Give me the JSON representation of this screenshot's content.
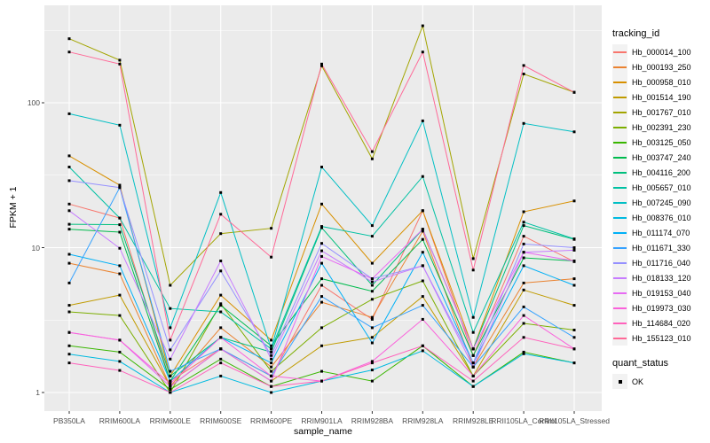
{
  "chart_data": {
    "type": "line",
    "xlabel": "sample_name",
    "ylabel": "FPKM + 1",
    "y_scale": "log10",
    "y_ticks": [
      1,
      10,
      100
    ],
    "y_minor": [
      3.162,
      31.62,
      316.2
    ],
    "ylim": [
      0.74,
      470
    ],
    "grid": true,
    "panel_bg": "#EBEBEB",
    "grid_color": "#FFFFFF",
    "point_shape": "square",
    "point_color": "#000000",
    "legend_position": "right",
    "legend_title": "tracking_id",
    "quant_legend_title": "quant_status",
    "quant_legend_item": "OK",
    "categories": [
      "PB350LA",
      "RRIM600LA",
      "RRIM600LE",
      "RRIM600SE",
      "RRIM600PE",
      "RRIM901LA",
      "RRIM928BA",
      "RRIM928LA",
      "RRIM928LE",
      "RRII105LA_Control",
      "RRII105LA_Stressed"
    ],
    "series": [
      {
        "name": "Hb_000014_100",
        "color": "#F8766D",
        "values": [
          20,
          16,
          1.2,
          2.0,
          1.3,
          5.5,
          3.2,
          18,
          1.8,
          12,
          8.0
        ]
      },
      {
        "name": "Hb_000193_250",
        "color": "#EA8331",
        "values": [
          7.8,
          6.6,
          1.1,
          2.8,
          1.5,
          4.2,
          3.3,
          13,
          1.5,
          5.7,
          6.1
        ]
      },
      {
        "name": "Hb_000958_010",
        "color": "#D89000",
        "values": [
          43,
          27,
          1.3,
          4.7,
          2.3,
          20,
          7.8,
          18,
          2.0,
          17.7,
          21
        ]
      },
      {
        "name": "Hb_001514_190",
        "color": "#C09B00",
        "values": [
          4.0,
          4.7,
          1.1,
          2.0,
          1.2,
          2.1,
          2.4,
          4.6,
          1.3,
          5.1,
          4.0
        ]
      },
      {
        "name": "Hb_001767_010",
        "color": "#A3A500",
        "values": [
          277,
          197,
          5.5,
          12.5,
          13.6,
          180,
          41,
          340,
          8.4,
          158,
          118
        ]
      },
      {
        "name": "Hb_002391_230",
        "color": "#7CAE00",
        "values": [
          3.6,
          3.4,
          1.0,
          4.1,
          1.4,
          2.8,
          4.4,
          5.9,
          1.3,
          3.0,
          2.7
        ]
      },
      {
        "name": "Hb_003125_050",
        "color": "#39B600",
        "values": [
          2.1,
          1.9,
          1.05,
          1.7,
          1.1,
          1.4,
          1.2,
          2.1,
          1.1,
          1.9,
          1.6
        ]
      },
      {
        "name": "Hb_003747_240",
        "color": "#00BB4E",
        "values": [
          13.4,
          12.8,
          1.2,
          4.0,
          2.1,
          6.1,
          5.0,
          11.4,
          1.8,
          8.5,
          8.1
        ]
      },
      {
        "name": "Hb_004116_200",
        "color": "#00BF7D",
        "values": [
          14.5,
          14.4,
          1.3,
          2.4,
          1.9,
          13.7,
          5.5,
          13.4,
          2.0,
          14.2,
          11.4
        ]
      },
      {
        "name": "Hb_005657_010",
        "color": "#00C1A3",
        "values": [
          36,
          16,
          3.8,
          3.6,
          2.0,
          14,
          12,
          31,
          2.6,
          15,
          11.5
        ]
      },
      {
        "name": "Hb_007245_090",
        "color": "#00BFC4",
        "values": [
          84,
          70,
          2.8,
          24,
          2.0,
          36,
          14.2,
          75,
          3.3,
          72,
          63
        ]
      },
      {
        "name": "Hb_008376_010",
        "color": "#00BAE0",
        "values": [
          1.84,
          1.64,
          1.0,
          1.3,
          1.0,
          1.2,
          1.43,
          1.94,
          1.1,
          1.85,
          1.6
        ]
      },
      {
        "name": "Hb_011174_070",
        "color": "#00B0F6",
        "values": [
          9.0,
          7.5,
          1.2,
          2.4,
          1.6,
          7.8,
          2.2,
          9.3,
          1.6,
          7.5,
          5.5
        ]
      },
      {
        "name": "Hb_011671_330",
        "color": "#35A2FF",
        "values": [
          5.7,
          26,
          1.4,
          2.0,
          1.3,
          4.6,
          2.8,
          4.0,
          1.5,
          3.9,
          2.4
        ]
      },
      {
        "name": "Hb_011716_040",
        "color": "#9590FF",
        "values": [
          29,
          26,
          1.97,
          6.9,
          1.8,
          10.7,
          6.1,
          7.5,
          1.6,
          10.6,
          10
        ]
      },
      {
        "name": "Hb_018133_120",
        "color": "#C77CFF",
        "values": [
          18,
          9.9,
          1.7,
          8.1,
          1.7,
          9.5,
          5.8,
          7.5,
          1.5,
          9.3,
          9.6
        ]
      },
      {
        "name": "Hb_019153_040",
        "color": "#E76BF3",
        "values": [
          2.6,
          2.3,
          1.1,
          2.0,
          1.2,
          8.7,
          6.1,
          13.4,
          2.0,
          9.3,
          8.1
        ]
      },
      {
        "name": "Hb_019973_030",
        "color": "#FA62DB",
        "values": [
          2.6,
          2.3,
          1.15,
          2.4,
          1.3,
          1.2,
          1.64,
          3.2,
          1.3,
          3.4,
          2.0
        ]
      },
      {
        "name": "Hb_114684_020",
        "color": "#FF62BC",
        "values": [
          1.6,
          1.42,
          1.0,
          1.6,
          1.1,
          1.2,
          1.6,
          2.1,
          1.2,
          2.4,
          2.0
        ]
      },
      {
        "name": "Hb_155123_010",
        "color": "#FF6A98",
        "values": [
          224,
          185,
          2.3,
          17,
          8.6,
          185,
          46,
          224,
          7.0,
          181,
          118
        ]
      }
    ]
  }
}
